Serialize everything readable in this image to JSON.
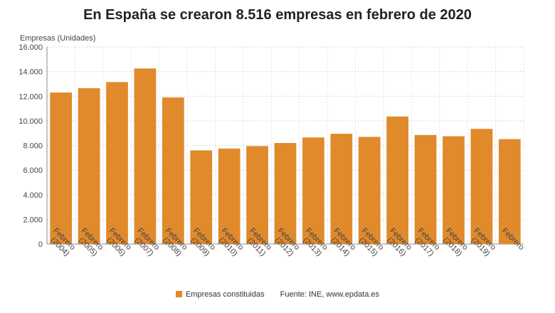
{
  "chart_data": {
    "type": "bar",
    "title": "En España se crearon 8.516 empresas en febrero de 2020",
    "ylabel": "Empresas (Unidades)",
    "xlabel": "",
    "ylim": [
      0,
      16000
    ],
    "yticks": [
      0,
      2000,
      4000,
      6000,
      8000,
      10000,
      12000,
      14000,
      16000
    ],
    "ytick_labels": [
      "0",
      "2.000",
      "4.000",
      "6.000",
      "8.000",
      "10.000",
      "12.000",
      "14.000",
      "16.000"
    ],
    "categories": [
      "Febrero (2004)",
      "Febrero (2005)",
      "Febrero (2006)",
      "Febrero (2007)",
      "Febrero (2008)",
      "Febrero (2009)",
      "Febrero (2010)",
      "Febrero (2011)",
      "Febrero (2012)",
      "Febrero (2013)",
      "Febrero (2014)",
      "Febrero (2015)",
      "Febrero (2016)",
      "Febrero (2017)",
      "Febrero (2018)",
      "Febrero (2019)",
      "Febrero"
    ],
    "series": [
      {
        "name": "Empresas constituidas",
        "color": "#e08a2c",
        "values": [
          12300,
          12650,
          13150,
          14250,
          11900,
          7600,
          7750,
          7950,
          8200,
          8650,
          8950,
          8700,
          10350,
          8850,
          8750,
          9350,
          8516
        ]
      }
    ],
    "grid": true,
    "legend_position": "bottom",
    "source": "Fuente: INE, www.epdata.es"
  }
}
